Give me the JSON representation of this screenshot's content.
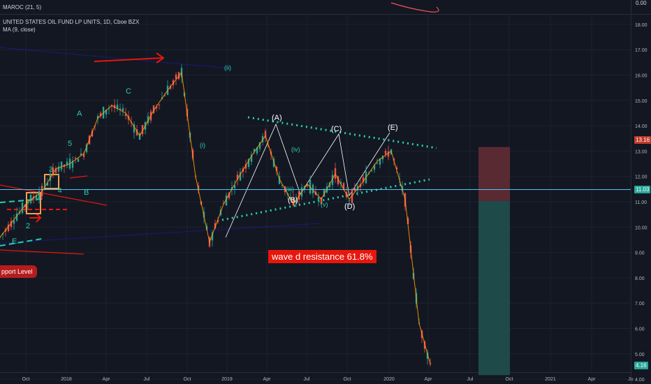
{
  "header": {
    "indicator": "MAROC (21, 5)",
    "symbol": "UNITED STATES OIL FUND LP UNITS, 1D, Cboe BZX",
    "ma": "MA (9, close)"
  },
  "annotation": {
    "wave_d": "wave d resistance 61.8%",
    "support": "pport Level"
  },
  "price_labels": {
    "top": "13.16",
    "mid": "11.03",
    "bottom": "4.16",
    "osc": "0.00"
  },
  "wave_labels": [
    "(A)",
    "(B)",
    "(C)",
    "(D)",
    "(E)",
    "(ii)",
    "(iii)",
    "(iv)",
    "(v)",
    "(i)",
    "A",
    "B",
    "C",
    "E",
    "2",
    "3",
    "4",
    "5"
  ],
  "colors": {
    "background": "#131722",
    "candle_up": "#26a69a",
    "candle_down": "#ef5350",
    "ma_line": "#ff9800",
    "channel": "#1e1ec8",
    "red": "#e8160c",
    "dotted": "#26d0b0",
    "zone_red": "#5a2a33",
    "zone_green": "#1e4a4a"
  },
  "chart_data": {
    "type": "line",
    "title": "UNITED STATES OIL FUND LP UNITS, 1D, Cboe BZX",
    "x_ticks": [
      "Oct",
      "2018",
      "Apr",
      "Jul",
      "Oct",
      "2019",
      "Apr",
      "Jul",
      "Oct",
      "2020",
      "Apr",
      "Jul",
      "Oct",
      "2021",
      "Apr",
      "Ju"
    ],
    "y_ticks": [
      "18.00",
      "17.00",
      "16.00",
      "15.00",
      "14.00",
      "13.00",
      "12.00",
      "11.00",
      "10.00",
      "9.00",
      "8.00",
      "7.00",
      "6.00",
      "5.00",
      "4.00"
    ],
    "ylim": [
      4,
      18.3
    ],
    "series": [
      {
        "name": "USO",
        "x": [
          "2017-08",
          "2017-09",
          "2017-10",
          "2017-11",
          "2017-12",
          "2018-01",
          "2018-02",
          "2018-03",
          "2018-04",
          "2018-05",
          "2018-06",
          "2018-07",
          "2018-08",
          "2018-09",
          "2018-10",
          "2018-11",
          "2018-12",
          "2019-01",
          "2019-02",
          "2019-03",
          "2019-04",
          "2019-05",
          "2019-06",
          "2019-07",
          "2019-08",
          "2019-09",
          "2019-10",
          "2019-11",
          "2019-12",
          "2020-01",
          "2020-02",
          "2020-03",
          "2020-04"
        ],
        "values": [
          9.9,
          9.6,
          10.3,
          11.0,
          11.4,
          12.3,
          12.5,
          12.9,
          14.3,
          14.8,
          14.5,
          13.6,
          14.6,
          15.4,
          16.1,
          12.0,
          9.4,
          10.9,
          11.9,
          12.8,
          13.6,
          11.9,
          10.9,
          11.7,
          11.1,
          12.1,
          11.1,
          11.8,
          12.6,
          13.0,
          11.1,
          6.2,
          4.2
        ]
      }
    ],
    "zones": {
      "red": [
        11.03,
        13.16
      ],
      "green": [
        4.16,
        11.03
      ]
    },
    "horizontal_line": 11.03
  }
}
